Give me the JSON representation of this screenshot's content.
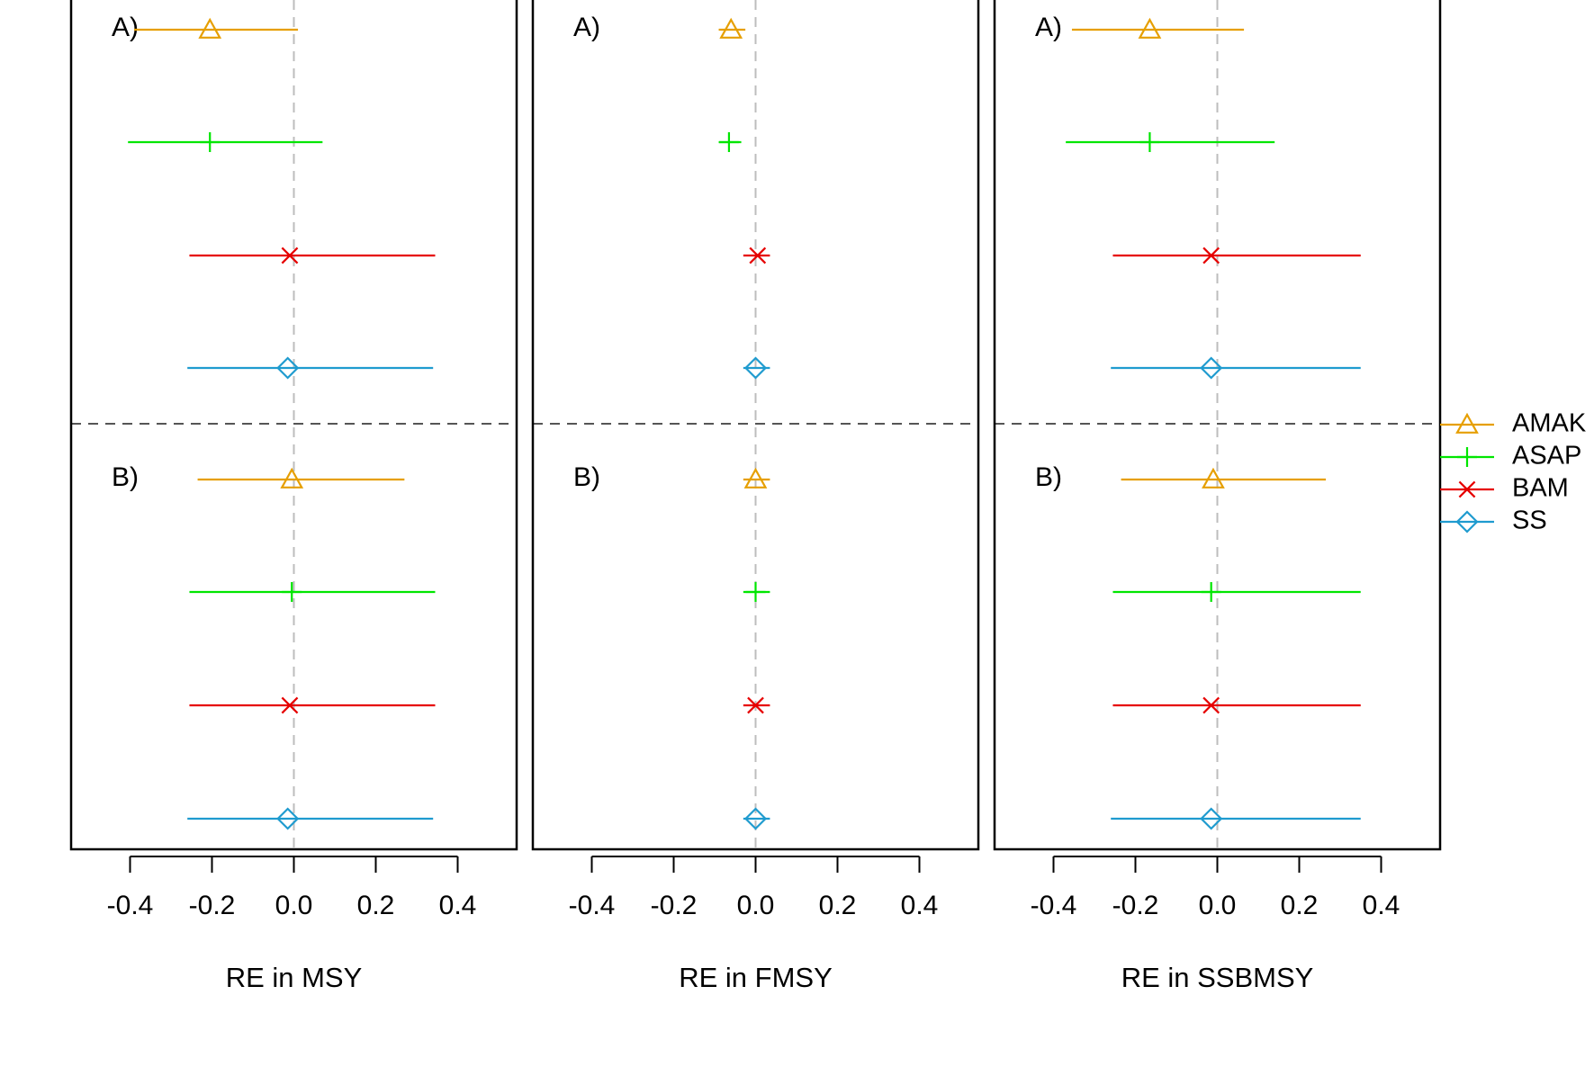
{
  "chart_data": {
    "type": "forest",
    "x_ticks": [
      -0.4,
      -0.2,
      0.0,
      0.2,
      0.4
    ],
    "x_tick_labels": [
      "-0.4",
      "-0.2",
      "0.0",
      "0.2",
      "0.4"
    ],
    "xlim": [
      -0.54,
      0.54
    ],
    "reference_line": 0.0,
    "groups": [
      {
        "label": "A)"
      },
      {
        "label": "B)"
      }
    ],
    "models": [
      {
        "name": "AMAK",
        "color": "#E69F00",
        "marker": "triangle"
      },
      {
        "name": "ASAP",
        "color": "#00E600",
        "marker": "plus"
      },
      {
        "name": "BAM",
        "color": "#E60000",
        "marker": "cross"
      },
      {
        "name": "SS",
        "color": "#1F9BCF",
        "marker": "diamond"
      }
    ],
    "panels": [
      {
        "xlabel": "RE in MSY",
        "group_label": [
          "A)",
          "B)"
        ],
        "rows": [
          {
            "group": 0,
            "model": "AMAK",
            "estimate": -0.205,
            "lower": -0.39,
            "upper": 0.01
          },
          {
            "group": 0,
            "model": "ASAP",
            "estimate": -0.205,
            "lower": -0.405,
            "upper": 0.07
          },
          {
            "group": 0,
            "model": "BAM",
            "estimate": -0.01,
            "lower": -0.255,
            "upper": 0.345
          },
          {
            "group": 0,
            "model": "SS",
            "estimate": -0.015,
            "lower": -0.26,
            "upper": 0.34
          },
          {
            "group": 1,
            "model": "AMAK",
            "estimate": -0.005,
            "lower": -0.235,
            "upper": 0.27
          },
          {
            "group": 1,
            "model": "ASAP",
            "estimate": -0.005,
            "lower": -0.255,
            "upper": 0.345
          },
          {
            "group": 1,
            "model": "BAM",
            "estimate": -0.01,
            "lower": -0.255,
            "upper": 0.345
          },
          {
            "group": 1,
            "model": "SS",
            "estimate": -0.015,
            "lower": -0.26,
            "upper": 0.34
          }
        ]
      },
      {
        "xlabel": "RE in FMSY",
        "group_label": [
          "A)",
          "B)"
        ],
        "rows": [
          {
            "group": 0,
            "model": "AMAK",
            "estimate": -0.06,
            "lower": -0.09,
            "upper": -0.025
          },
          {
            "group": 0,
            "model": "ASAP",
            "estimate": -0.065,
            "lower": -0.09,
            "upper": -0.035
          },
          {
            "group": 0,
            "model": "BAM",
            "estimate": 0.005,
            "lower": -0.03,
            "upper": 0.035
          },
          {
            "group": 0,
            "model": "SS",
            "estimate": 0.0,
            "lower": -0.03,
            "upper": 0.035
          },
          {
            "group": 1,
            "model": "AMAK",
            "estimate": 0.0,
            "lower": -0.03,
            "upper": 0.035
          },
          {
            "group": 1,
            "model": "ASAP",
            "estimate": 0.0,
            "lower": -0.03,
            "upper": 0.035
          },
          {
            "group": 1,
            "model": "BAM",
            "estimate": 0.0,
            "lower": -0.03,
            "upper": 0.035
          },
          {
            "group": 1,
            "model": "SS",
            "estimate": 0.0,
            "lower": -0.03,
            "upper": 0.035
          }
        ]
      },
      {
        "xlabel": "RE in SSBMSY",
        "group_label": [
          "A)",
          "B)"
        ],
        "rows": [
          {
            "group": 0,
            "model": "AMAK",
            "estimate": -0.165,
            "lower": -0.355,
            "upper": 0.065
          },
          {
            "group": 0,
            "model": "ASAP",
            "estimate": -0.165,
            "lower": -0.37,
            "upper": 0.14
          },
          {
            "group": 0,
            "model": "BAM",
            "estimate": -0.015,
            "lower": -0.255,
            "upper": 0.35
          },
          {
            "group": 0,
            "model": "SS",
            "estimate": -0.015,
            "lower": -0.26,
            "upper": 0.35
          },
          {
            "group": 1,
            "model": "AMAK",
            "estimate": -0.01,
            "lower": -0.235,
            "upper": 0.265
          },
          {
            "group": 1,
            "model": "ASAP",
            "estimate": -0.015,
            "lower": -0.255,
            "upper": 0.35
          },
          {
            "group": 1,
            "model": "BAM",
            "estimate": -0.015,
            "lower": -0.255,
            "upper": 0.35
          },
          {
            "group": 1,
            "model": "SS",
            "estimate": -0.015,
            "lower": -0.26,
            "upper": 0.35
          }
        ]
      }
    ],
    "legend": {
      "position": "right",
      "entries": [
        "AMAK",
        "ASAP",
        "BAM",
        "SS"
      ]
    },
    "grid": false
  }
}
